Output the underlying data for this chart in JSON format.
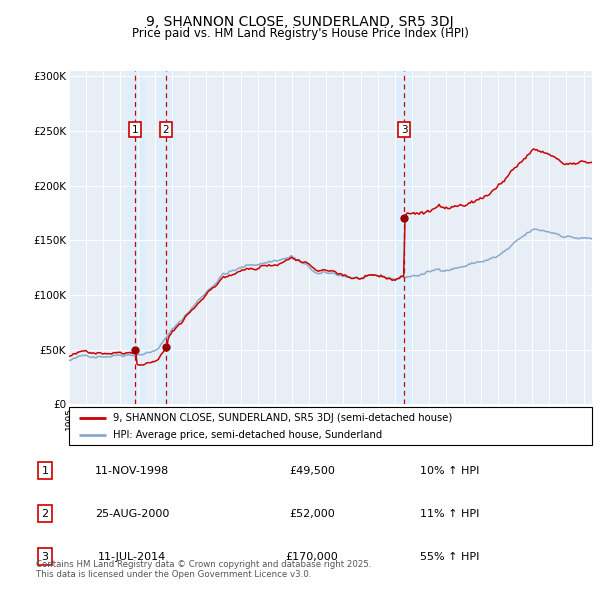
{
  "title": "9, SHANNON CLOSE, SUNDERLAND, SR5 3DJ",
  "subtitle": "Price paid vs. HM Land Registry's House Price Index (HPI)",
  "yticks": [
    0,
    50000,
    100000,
    150000,
    200000,
    250000,
    300000
  ],
  "ytick_labels": [
    "£0",
    "£50K",
    "£100K",
    "£150K",
    "£200K",
    "£250K",
    "£300K"
  ],
  "xstart": 1995.0,
  "xend": 2025.5,
  "sales": [
    {
      "date_num": 1998.87,
      "price": 49500,
      "label": "1",
      "date_str": "11-NOV-1998",
      "pct": "10%"
    },
    {
      "date_num": 2000.65,
      "price": 52000,
      "label": "2",
      "date_str": "25-AUG-2000",
      "pct": "11%"
    },
    {
      "date_num": 2014.53,
      "price": 170000,
      "label": "3",
      "date_str": "11-JUL-2014",
      "pct": "55%"
    }
  ],
  "legend_line1": "9, SHANNON CLOSE, SUNDERLAND, SR5 3DJ (semi-detached house)",
  "legend_line2": "HPI: Average price, semi-detached house, Sunderland",
  "footnote": "Contains HM Land Registry data © Crown copyright and database right 2025.\nThis data is licensed under the Open Government Licence v3.0.",
  "red_color": "#cc0000",
  "blue_color": "#88aacc",
  "shade_color": "#ddeeff",
  "bg_color": "#e8eef5",
  "grid_color": "#ffffff",
  "sale_dot_color": "#990000"
}
